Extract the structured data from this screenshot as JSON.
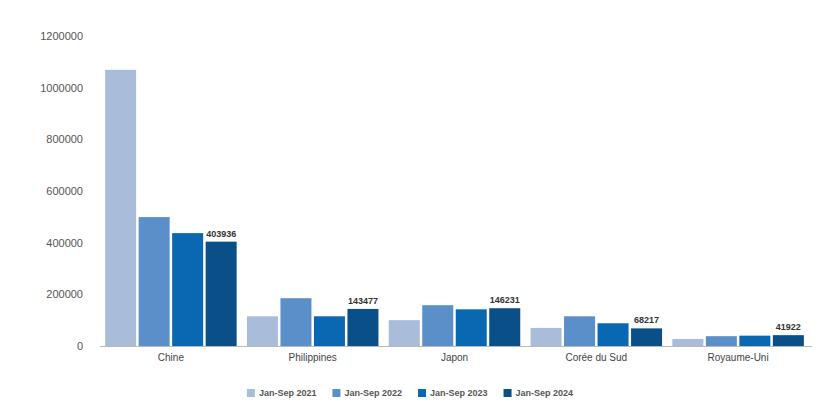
{
  "chart_data": {
    "type": "bar",
    "categories": [
      "Chine",
      "Philippines",
      "Japon",
      "Corée du Sud",
      "Royaume-Uni"
    ],
    "series": [
      {
        "name": "Jan-Sep 2021",
        "color": "#a9bcd9",
        "values": [
          1069000,
          115000,
          100000,
          70000,
          27000
        ]
      },
      {
        "name": "Jan-Sep 2022",
        "color": "#5b8fc9",
        "values": [
          499000,
          185000,
          158000,
          115000,
          38000
        ]
      },
      {
        "name": "Jan-Sep 2023",
        "color": "#0a68b2",
        "values": [
          437000,
          115000,
          142000,
          88000,
          40000
        ]
      },
      {
        "name": "Jan-Sep 2024",
        "color": "#0a4f88",
        "values": [
          403936,
          143477,
          146231,
          68217,
          41922
        ],
        "data_labels": true
      }
    ],
    "ylim": [
      0,
      1200000
    ],
    "yticks": [
      0,
      200000,
      400000,
      600000,
      800000,
      1000000,
      1200000
    ],
    "grid": false,
    "legend": "bottom"
  }
}
